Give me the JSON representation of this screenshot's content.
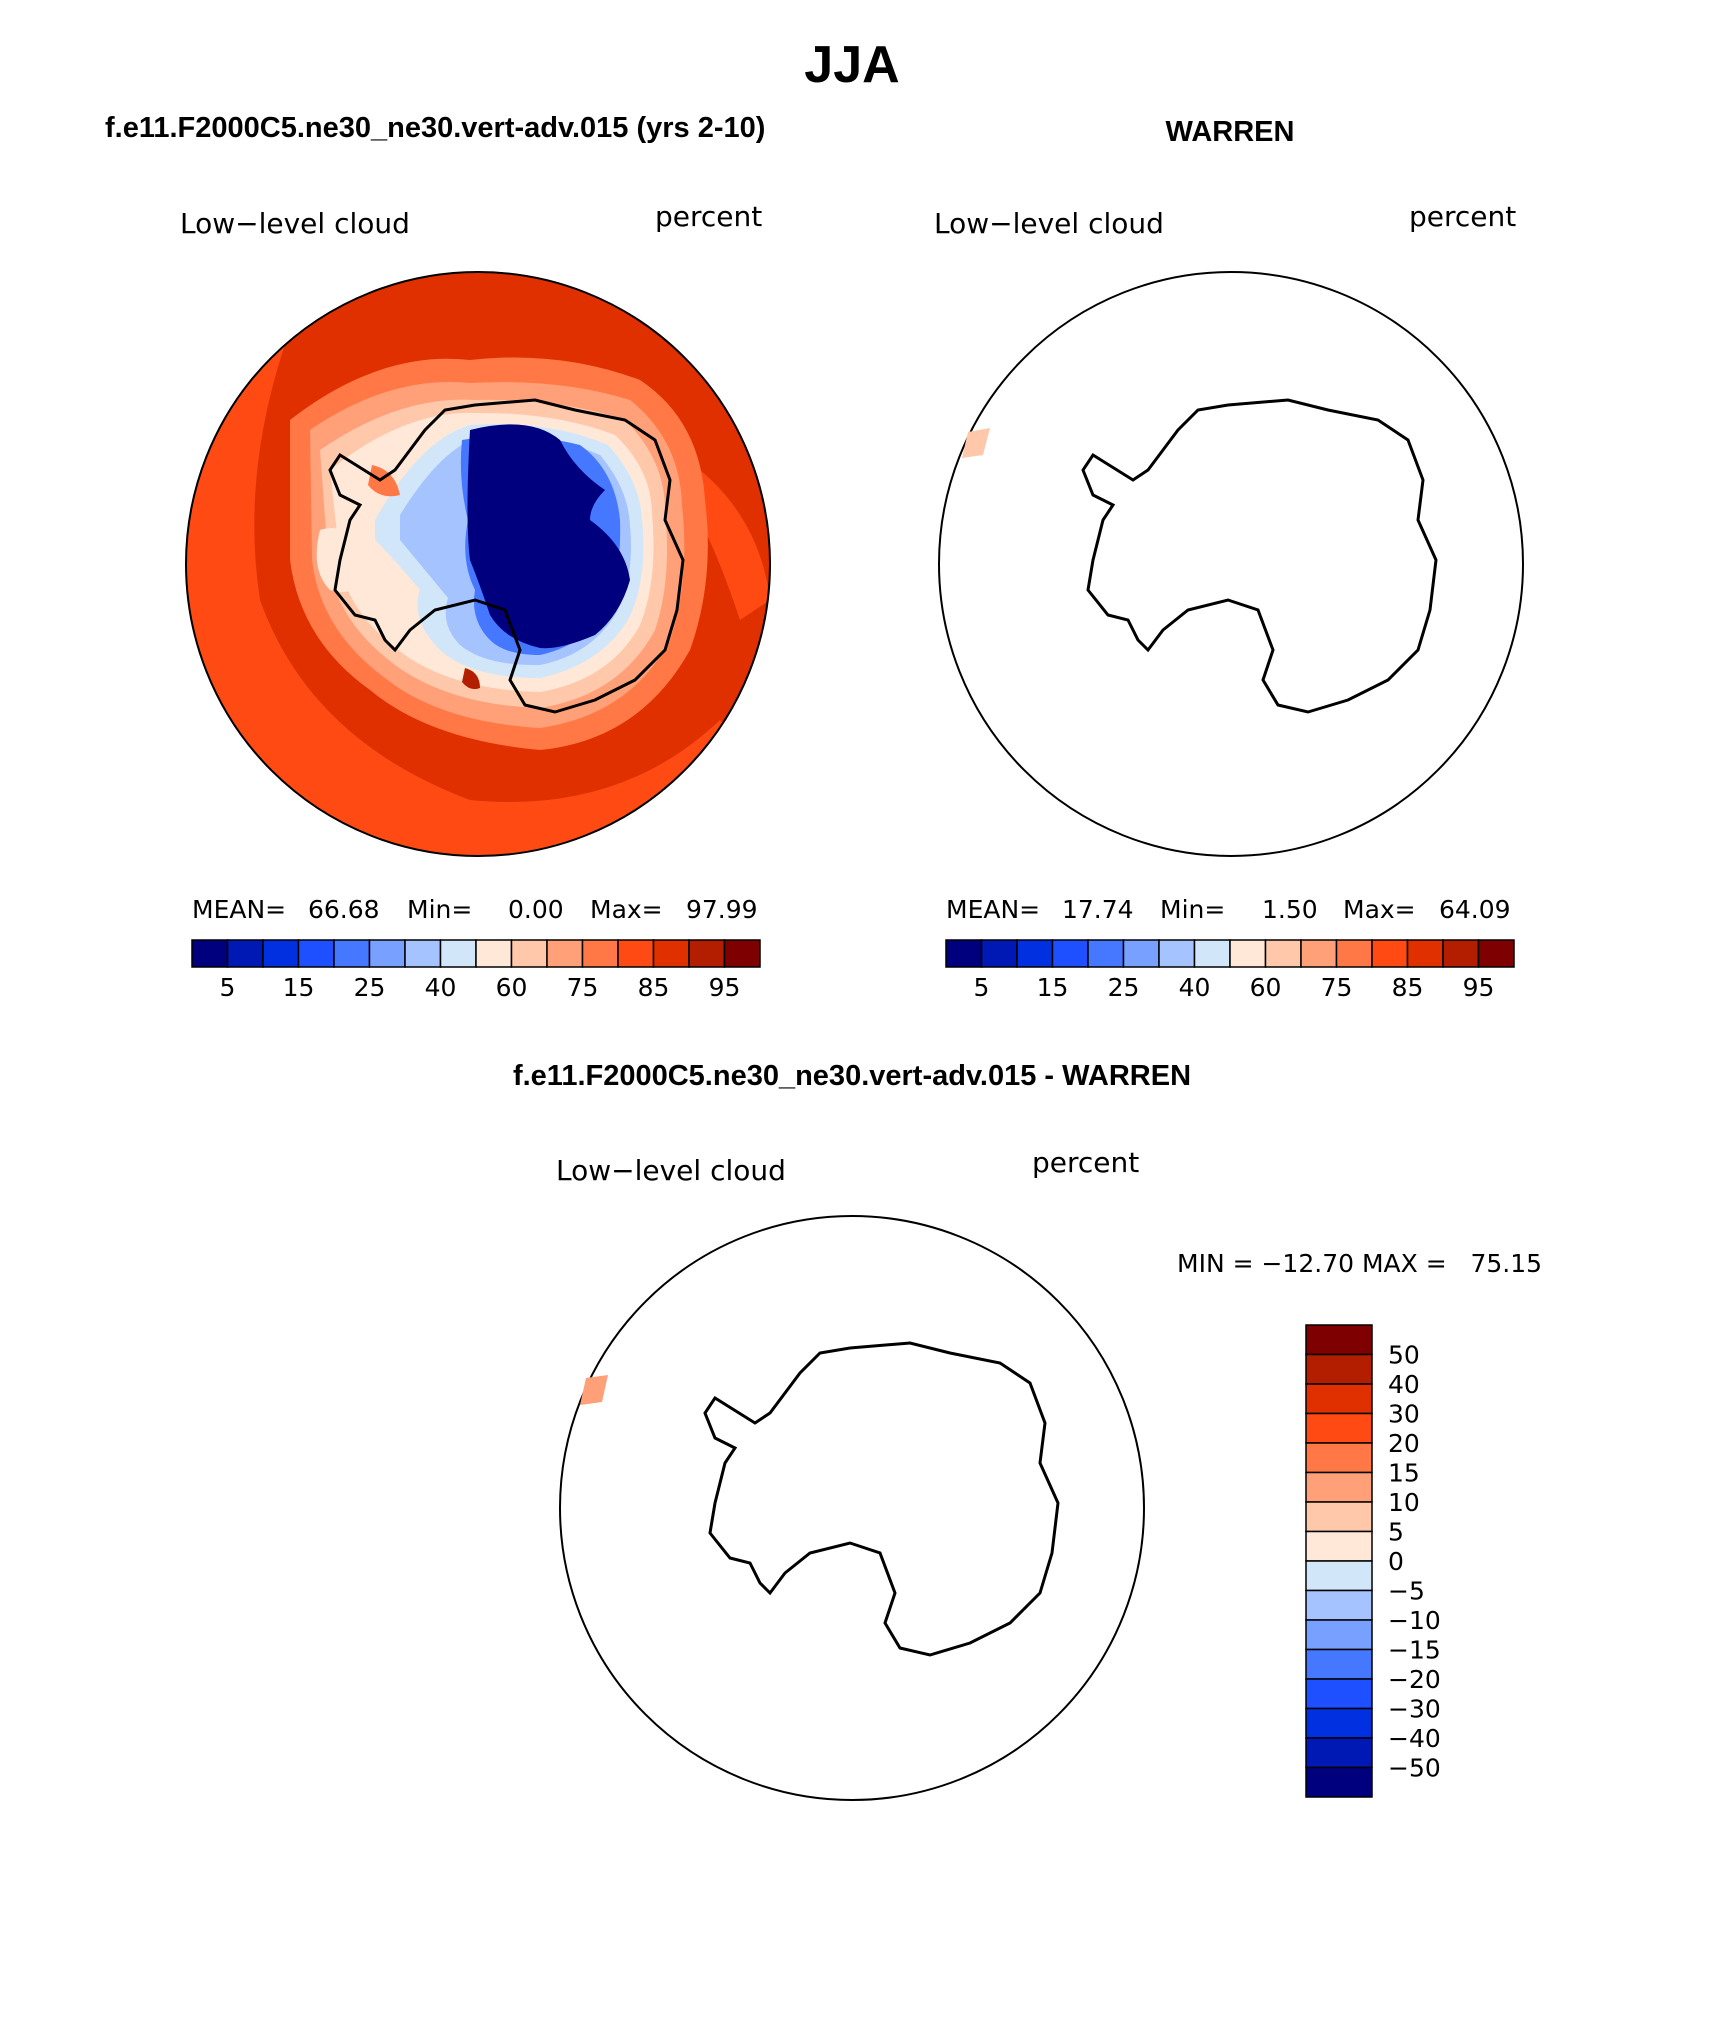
{
  "chart_data": {
    "type": "polar-contour-map",
    "title": "JJA",
    "colors": {
      "abs": [
        "#00007f",
        "#0018b4",
        "#0030e0",
        "#1e50ff",
        "#4678ff",
        "#78a0ff",
        "#a5c4ff",
        "#d2e6fa",
        "#ffe8d8",
        "#ffc8aa",
        "#ffa078",
        "#ff7846",
        "#ff4a14",
        "#e03000",
        "#b41e00",
        "#7f0000"
      ],
      "diff": [
        "#00007f",
        "#0018b4",
        "#0030e0",
        "#1e50ff",
        "#4678ff",
        "#78a0ff",
        "#a5c4ff",
        "#d2e6fa",
        "#ffe8d8",
        "#ffc8aa",
        "#ffa078",
        "#ff7846",
        "#ff4a14",
        "#e03000",
        "#b41e00",
        "#7f0000"
      ]
    },
    "panels": [
      {
        "heading": "f.e11.F2000C5.ne30_ne30.vert-adv.015 (yrs 2-10)",
        "field": "Low−level cloud",
        "units": "percent",
        "stats": {
          "mean_label": "MEAN=",
          "mean": "66.68",
          "min_label": "Min=",
          "min": "0.00",
          "max_label": "Max=",
          "max": "97.99"
        },
        "levels": [
          "5",
          "15",
          "25",
          "40",
          "60",
          "75",
          "85",
          "95"
        ]
      },
      {
        "heading": "WARREN",
        "field": "Low−level cloud",
        "units": "percent",
        "stats": {
          "mean_label": "MEAN=",
          "mean": "17.74",
          "min_label": "Min=",
          "min": "1.50",
          "max_label": "Max=",
          "max": "64.09"
        },
        "levels": [
          "5",
          "15",
          "25",
          "40",
          "60",
          "75",
          "85",
          "95"
        ]
      },
      {
        "heading": "f.e11.F2000C5.ne30_ne30.vert-adv.015 - WARREN",
        "field": "Low−level cloud",
        "units": "percent",
        "stats_text": "MIN = −12.70 MAX =   75.15",
        "levels": [
          "50",
          "40",
          "30",
          "20",
          "15",
          "10",
          "5",
          "0",
          "−5",
          "−10",
          "−15",
          "−20",
          "−30",
          "−40",
          "−50"
        ]
      }
    ]
  }
}
